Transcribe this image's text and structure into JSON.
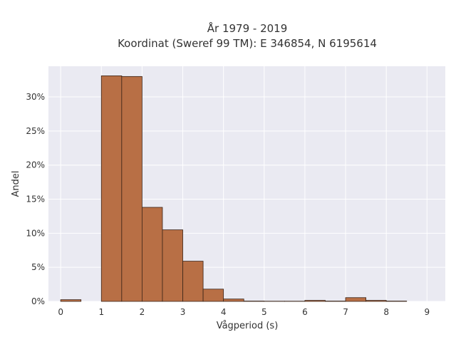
{
  "chart_data": {
    "type": "bar",
    "title_line1": "År 1979 - 2019",
    "title_line2": "Koordinat (Sweref 99 TM): E 346854, N 6195614",
    "xlabel": "Vågperiod (s)",
    "ylabel": "Andel",
    "xlim": [
      -0.3,
      9.45
    ],
    "ylim": [
      0,
      34.5
    ],
    "grid": true,
    "bin_width": 0.5,
    "x_ticks": [
      0,
      1,
      2,
      3,
      4,
      5,
      6,
      7,
      8,
      9
    ],
    "x_tick_labels": [
      "0",
      "1",
      "2",
      "3",
      "4",
      "5",
      "6",
      "7",
      "8",
      "9"
    ],
    "y_ticks": [
      0,
      5,
      10,
      15,
      20,
      25,
      30
    ],
    "y_tick_labels": [
      "0%",
      "5%",
      "10%",
      "15%",
      "20%",
      "25%",
      "30%"
    ],
    "bar_color": "#b86f45",
    "bar_edge_color": "#3a2418",
    "background_color": "#eaeaf2",
    "bins": [
      {
        "x0": 0.0,
        "value": 0.25
      },
      {
        "x0": 0.5,
        "value": 0.0
      },
      {
        "x0": 1.0,
        "value": 33.1
      },
      {
        "x0": 1.5,
        "value": 33.0
      },
      {
        "x0": 2.0,
        "value": 13.8
      },
      {
        "x0": 2.5,
        "value": 10.5
      },
      {
        "x0": 3.0,
        "value": 5.9
      },
      {
        "x0": 3.5,
        "value": 1.8
      },
      {
        "x0": 4.0,
        "value": 0.35
      },
      {
        "x0": 4.5,
        "value": 0.05
      },
      {
        "x0": 5.0,
        "value": 0.03
      },
      {
        "x0": 5.5,
        "value": 0.03
      },
      {
        "x0": 6.0,
        "value": 0.15
      },
      {
        "x0": 6.5,
        "value": 0.05
      },
      {
        "x0": 7.0,
        "value": 0.55
      },
      {
        "x0": 7.5,
        "value": 0.15
      },
      {
        "x0": 8.0,
        "value": 0.05
      }
    ]
  }
}
